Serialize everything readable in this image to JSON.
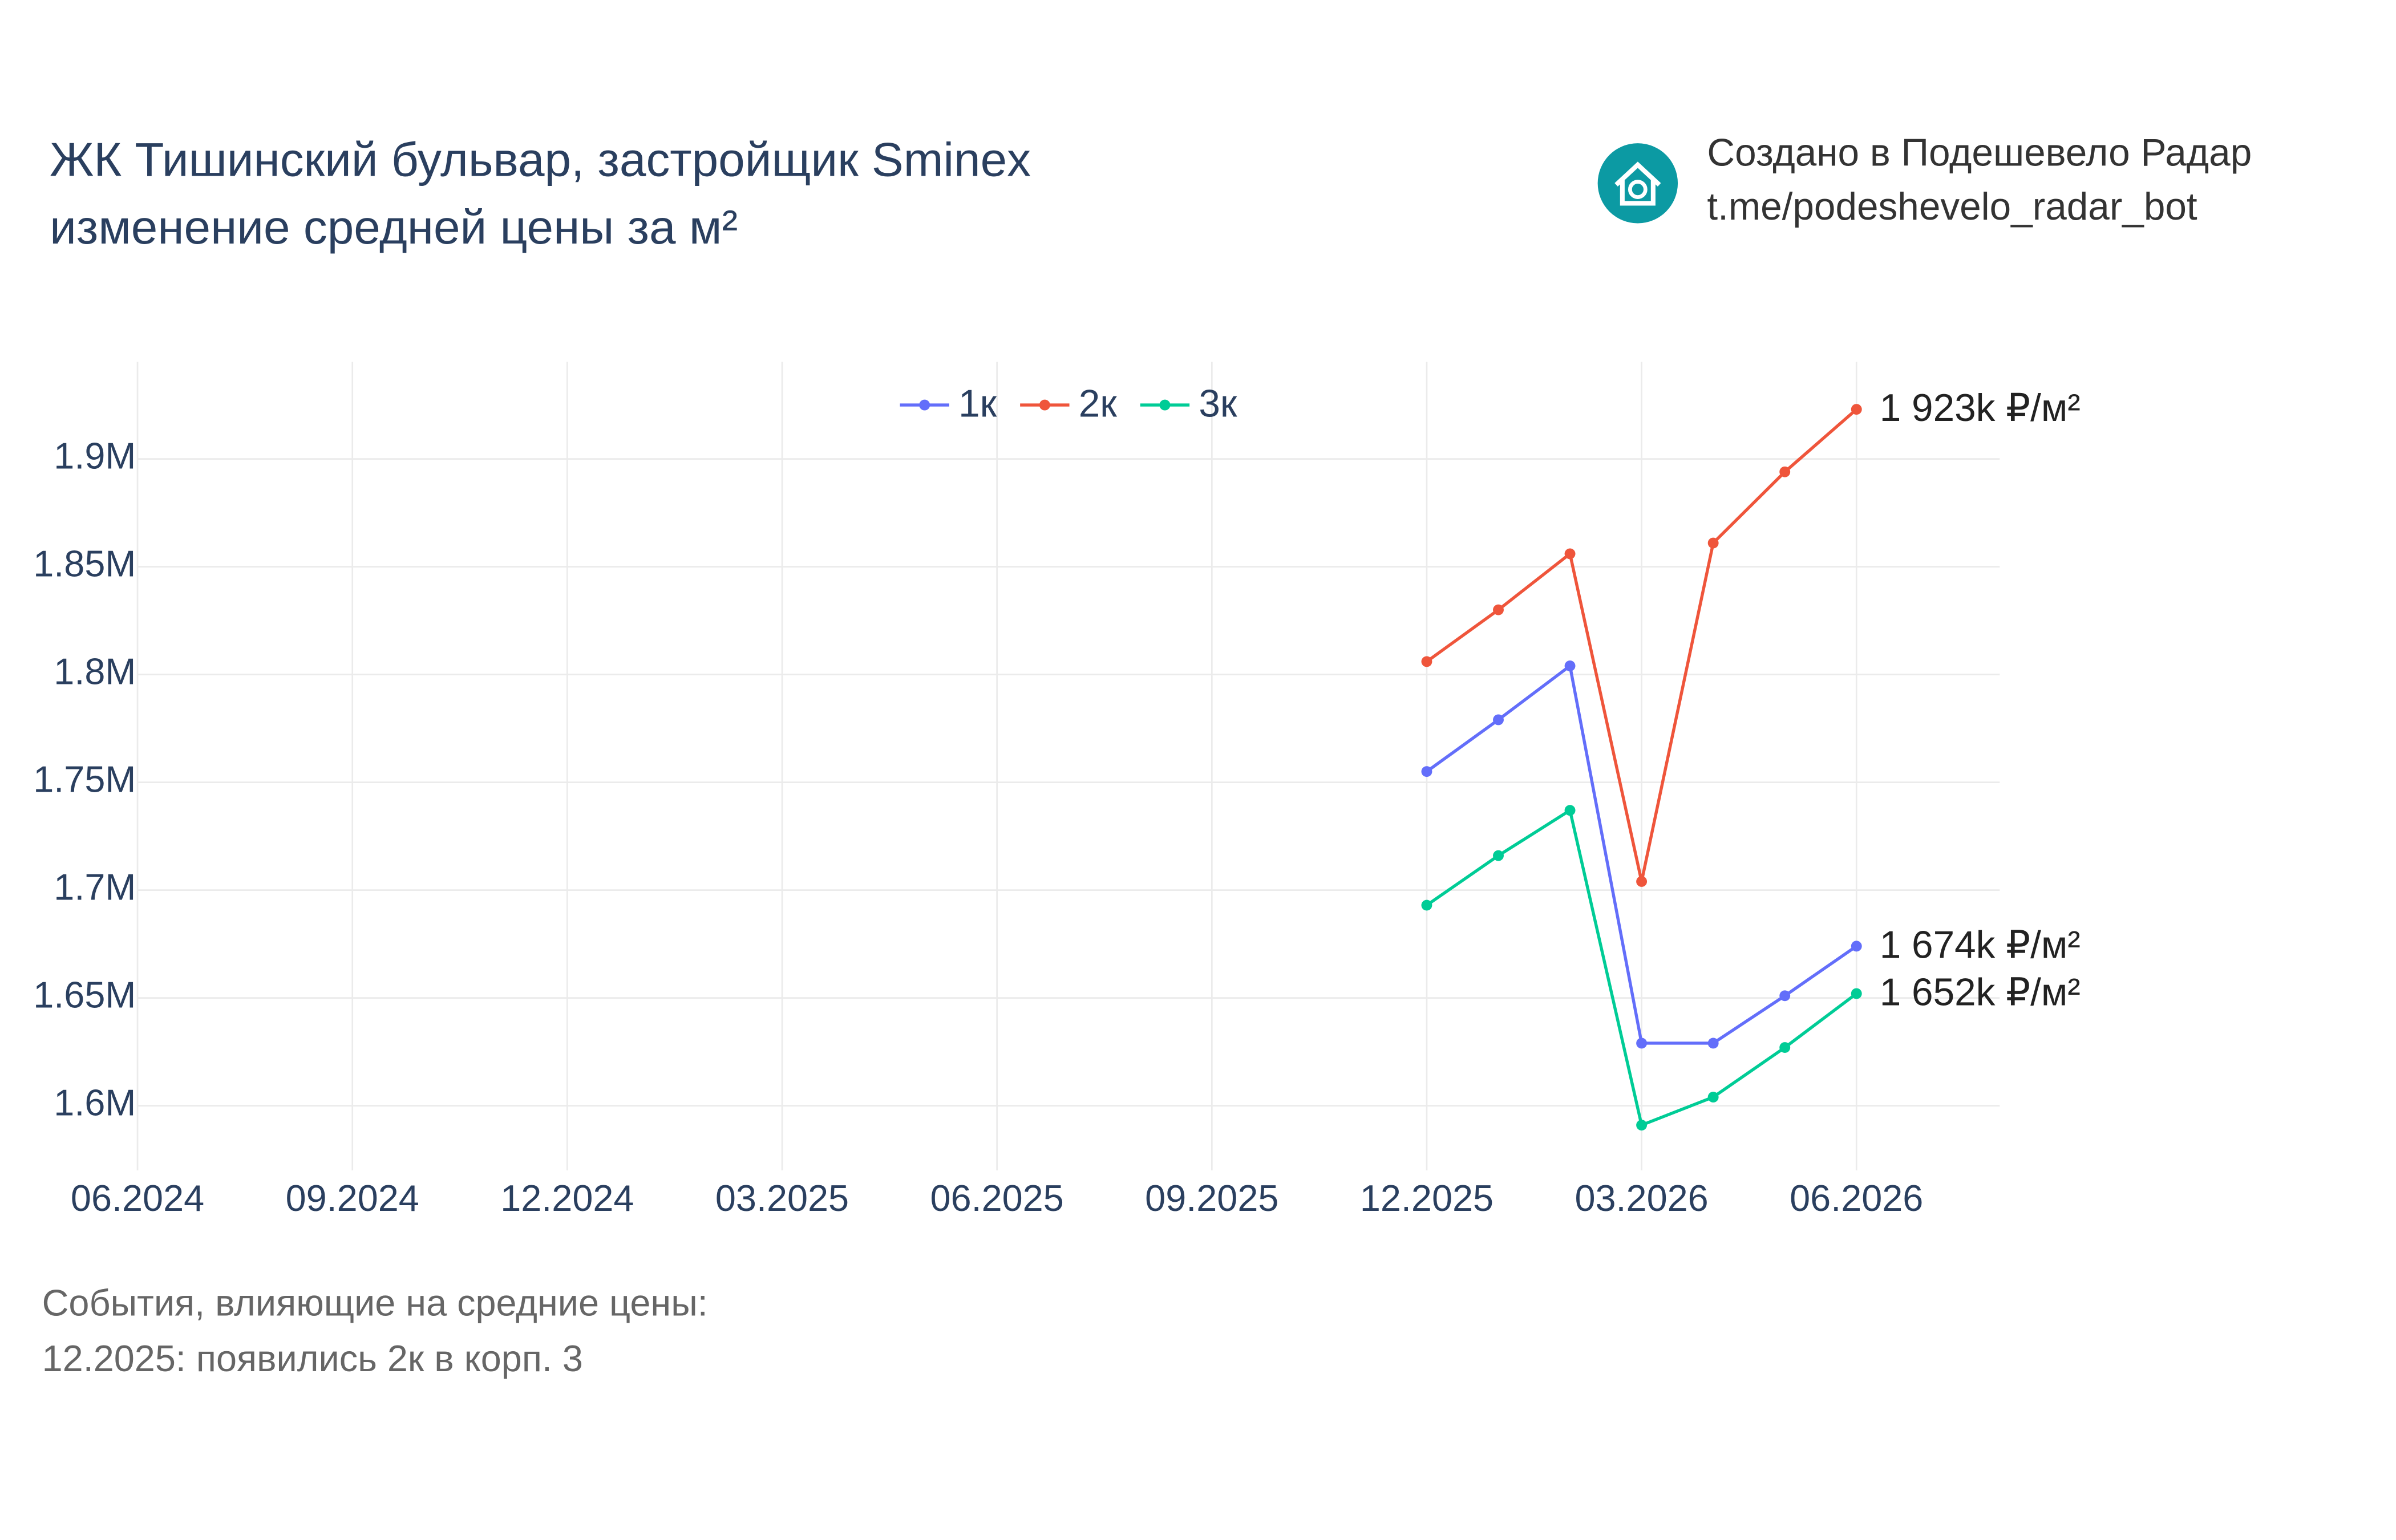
{
  "header": {
    "title_line1": "ЖК Тишинский бульвар, застройщик Sminex",
    "title_line2": "изменение средней цены за м²",
    "credit_line1": "Создано в Подешевело Радар",
    "credit_line2": "t.me/podeshevelo_radar_bot"
  },
  "chart_data": {
    "type": "line",
    "x": [
      "12.2025",
      "01.2026",
      "02.2026",
      "03.2026",
      "04.2026",
      "05.2026",
      "06.2026"
    ],
    "series": [
      {
        "name": "1к",
        "color": "#636efa",
        "values": [
          1755000,
          1779000,
          1804000,
          1629000,
          1629000,
          1651000,
          1674000
        ],
        "value_labels": [
          null,
          null,
          null,
          null,
          null,
          null,
          "1 674k ₽/м²"
        ]
      },
      {
        "name": "2к",
        "color": "#ef553b",
        "values": [
          1806000,
          1830000,
          1856000,
          1704000,
          1861000,
          1894000,
          1923000
        ],
        "value_labels": [
          null,
          null,
          null,
          null,
          null,
          null,
          "1 923k ₽/м²"
        ]
      },
      {
        "name": "3к",
        "color": "#00cc96",
        "values": [
          1693000,
          1716000,
          1737000,
          1591000,
          1604000,
          1627000,
          1652000
        ],
        "value_labels": [
          null,
          null,
          null,
          null,
          null,
          null,
          "1 652k ₽/м²"
        ]
      }
    ],
    "xlim": [
      "06.2024",
      "08.2026"
    ],
    "xticks": [
      "06.2024",
      "09.2024",
      "12.2024",
      "03.2025",
      "06.2025",
      "09.2025",
      "12.2025",
      "03.2026",
      "06.2026"
    ],
    "ylim": [
      1570000,
      1945000
    ],
    "yticks": [
      {
        "value": 1600000,
        "label": "1.6M"
      },
      {
        "value": 1650000,
        "label": "1.65M"
      },
      {
        "value": 1700000,
        "label": "1.7M"
      },
      {
        "value": 1750000,
        "label": "1.75M"
      },
      {
        "value": 1800000,
        "label": "1.8M"
      },
      {
        "value": 1850000,
        "label": "1.85M"
      },
      {
        "value": 1900000,
        "label": "1.9M"
      }
    ],
    "grid": true,
    "legend": "top"
  },
  "footer": {
    "events_title": "События, влияющие на средние цены:",
    "events": [
      "12.2025: появились 2к в корп. 3"
    ]
  }
}
